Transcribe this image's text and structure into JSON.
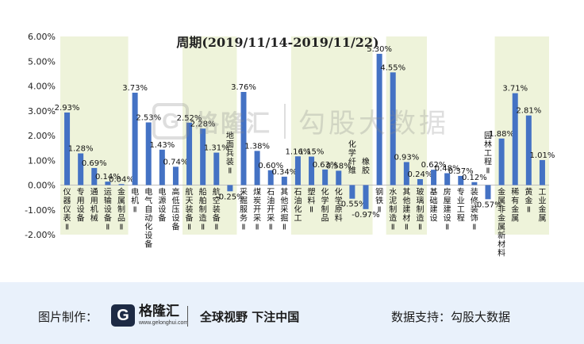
{
  "chart_data": {
    "type": "bar",
    "title": "周期(2019/11/14-2019/11/22)",
    "xlabel": "",
    "ylabel": "",
    "ylim": [
      -2,
      6
    ],
    "yticks": [
      "-2.00%",
      "-1.00%",
      "0.00%",
      "1.00%",
      "2.00%",
      "3.00%",
      "4.00%",
      "5.00%",
      "6.00%"
    ],
    "bar_color": "#4472c4",
    "band_color": "#eef3da",
    "categories": [
      "仪器仪表Ⅱ",
      "专用设备",
      "通用机械",
      "运输设备Ⅱ",
      "金属制品Ⅱ",
      "电机Ⅱ",
      "电气自动化设备",
      "电源设备",
      "高低压设备",
      "航天装备Ⅱ",
      "船舶制造Ⅱ",
      "航空装备Ⅱ",
      "地面兵装Ⅱ",
      "采掘服务Ⅱ",
      "煤炭开采Ⅱ",
      "石油开采Ⅱ",
      "其他采掘Ⅱ",
      "石油化工",
      "塑料Ⅱ",
      "化学制品",
      "化学原料",
      "化学纤维",
      "橡胶",
      "钢铁Ⅱ",
      "水泥制造Ⅱ",
      "其他建材Ⅱ",
      "玻璃制造Ⅱ",
      "基础建设",
      "房屋建设Ⅱ",
      "专业工程",
      "装修装饰Ⅱ",
      "园林工程Ⅱ",
      "金属非金属新材料",
      "稀有金属",
      "黄金Ⅱ",
      "工业金属"
    ],
    "values": [
      2.93,
      1.28,
      0.69,
      0.14,
      0.04,
      3.73,
      2.53,
      1.43,
      0.74,
      2.52,
      2.28,
      1.31,
      -0.25,
      3.76,
      1.38,
      0.6,
      0.34,
      1.16,
      1.15,
      0.63,
      0.58,
      -0.55,
      -0.97,
      5.3,
      4.55,
      0.93,
      0.24,
      0.62,
      0.48,
      0.37,
      0.12,
      -0.57,
      1.88,
      3.71,
      2.81,
      1.01
    ],
    "value_labels": [
      "2.93%",
      "1.28%",
      "0.69%",
      "0.14%",
      "0.04%",
      "3.73%",
      "2.53%",
      "1.43%",
      "0.74%",
      "2.52%",
      "2.28%",
      "1.31%",
      "-0.25%",
      "3.76%",
      "1.38%",
      "0.60%",
      "0.34%",
      "1.16%",
      "1.15%",
      "0.63%",
      "0.58%",
      "-0.55%",
      "-0.97%",
      "5.30%",
      "4.55%",
      "0.93%",
      "0.24%",
      "0.62%",
      "0.48%",
      "0.37%",
      "0.12%",
      "-0.57%",
      "1.88%",
      "3.71%",
      "2.81%",
      "1.01%"
    ],
    "group_sizes": [
      5,
      4,
      4,
      4,
      6,
      1,
      3,
      5,
      4
    ]
  },
  "watermark": {
    "left_text": "格隆汇",
    "right_text": "勾股大数据",
    "logo_letter": "G"
  },
  "footer": {
    "made_by_label": "图片制作：",
    "logo_name": "格隆汇",
    "logo_domain": "www.gelonghui.com",
    "logo_letter": "G",
    "slogan": "全球视野 下注中国",
    "support_label": "数据支持：",
    "support_name": "勾股大数据"
  }
}
